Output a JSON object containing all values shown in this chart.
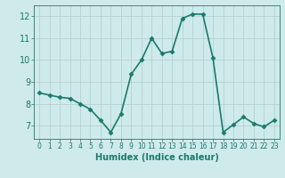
{
  "x": [
    0,
    1,
    2,
    3,
    4,
    5,
    6,
    7,
    8,
    9,
    10,
    11,
    12,
    13,
    14,
    15,
    16,
    17,
    18,
    19,
    20,
    21,
    22,
    23
  ],
  "y": [
    8.5,
    8.4,
    8.3,
    8.25,
    8.0,
    7.75,
    7.25,
    6.7,
    7.55,
    9.35,
    10.0,
    11.0,
    10.3,
    10.4,
    11.9,
    12.1,
    12.1,
    10.1,
    6.7,
    7.05,
    7.4,
    7.1,
    6.95,
    7.25
  ],
  "line_color": "#1a7a6e",
  "marker": "D",
  "marker_size": 2.5,
  "bg_color": "#ceeaea",
  "grid_color": "#b0cece",
  "xlabel": "Humidex (Indice chaleur)",
  "xlabel_fontsize": 7,
  "xtick_labels": [
    "0",
    "1",
    "2",
    "3",
    "4",
    "5",
    "6",
    "7",
    "8",
    "9",
    "10",
    "11",
    "12",
    "13",
    "14",
    "15",
    "16",
    "17",
    "18",
    "19",
    "20",
    "21",
    "22",
    "23"
  ],
  "ylim": [
    6.4,
    12.5
  ],
  "yticks": [
    7,
    8,
    9,
    10,
    11,
    12
  ],
  "tick_color": "#1a7a6e",
  "xtick_fontsize": 5.5,
  "ytick_fontsize": 7,
  "linewidth": 1.2
}
